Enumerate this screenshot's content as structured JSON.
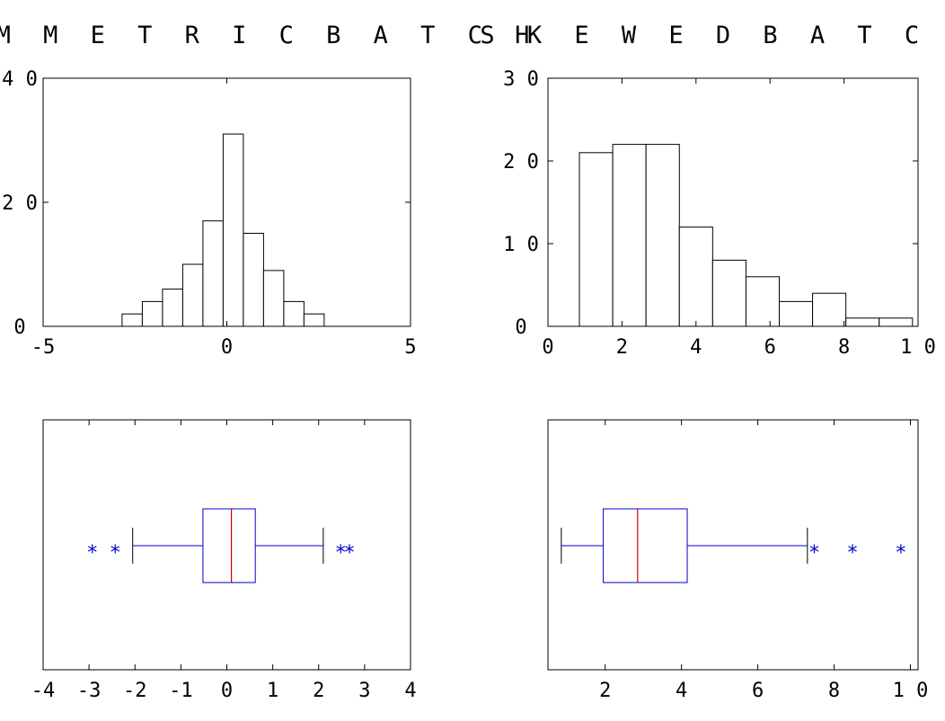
{
  "chart_data": [
    {
      "type": "histogram",
      "title": "S Y M M E T R I C  B A T C H",
      "xlim": [
        -5,
        5
      ],
      "ylim": [
        0,
        40
      ],
      "xticks": [
        "-5",
        "0",
        "5"
      ],
      "yticks": [
        "0",
        "2 0",
        "4 0"
      ],
      "bin_width": 0.55,
      "bins": [
        {
          "x0": -2.85,
          "count": 2
        },
        {
          "x0": -2.3,
          "count": 4
        },
        {
          "x0": -1.75,
          "count": 6
        },
        {
          "x0": -1.2,
          "count": 10
        },
        {
          "x0": -0.65,
          "count": 17
        },
        {
          "x0": -0.1,
          "count": 31
        },
        {
          "x0": 0.45,
          "count": 15
        },
        {
          "x0": 1.0,
          "count": 9
        },
        {
          "x0": 1.55,
          "count": 4
        },
        {
          "x0": 2.1,
          "count": 2
        }
      ]
    },
    {
      "type": "histogram",
      "title": "S K E W  E D  B A T C H",
      "xlim": [
        0,
        10
      ],
      "ylim": [
        0,
        30
      ],
      "xticks": [
        "0",
        "2",
        "4",
        "6",
        "8",
        "1 0"
      ],
      "yticks": [
        "0",
        "1 0",
        "2 0",
        "3 0"
      ],
      "bin_width": 0.9,
      "bins": [
        {
          "x0": 0.85,
          "count": 21
        },
        {
          "x0": 1.75,
          "count": 22
        },
        {
          "x0": 2.65,
          "count": 22
        },
        {
          "x0": 3.55,
          "count": 12
        },
        {
          "x0": 4.45,
          "count": 8
        },
        {
          "x0": 5.35,
          "count": 6
        },
        {
          "x0": 6.25,
          "count": 3
        },
        {
          "x0": 7.15,
          "count": 4
        },
        {
          "x0": 8.05,
          "count": 1
        },
        {
          "x0": 8.95,
          "count": 1
        }
      ]
    },
    {
      "type": "boxplot",
      "xlim": [
        -4,
        4
      ],
      "xticks": [
        "-4",
        "-3",
        "-2",
        "-1",
        "0",
        "1",
        "2",
        "3",
        "4"
      ],
      "whisker_low": -2.05,
      "q1": -0.52,
      "median": 0.1,
      "q3": 0.62,
      "whisker_high": 2.1,
      "outliers": [
        -2.93,
        -2.43,
        2.48,
        2.67
      ]
    },
    {
      "type": "boxplot",
      "xlim": [
        0.5,
        10.2
      ],
      "xticks": [
        "2",
        "4",
        "6",
        "8",
        "1 0"
      ],
      "tick_values": [
        2,
        4,
        6,
        8,
        10
      ],
      "whisker_low": 0.85,
      "q1": 1.95,
      "median": 2.85,
      "q3": 4.15,
      "whisker_high": 7.3,
      "outliers": [
        7.48,
        8.48,
        9.75
      ]
    }
  ]
}
